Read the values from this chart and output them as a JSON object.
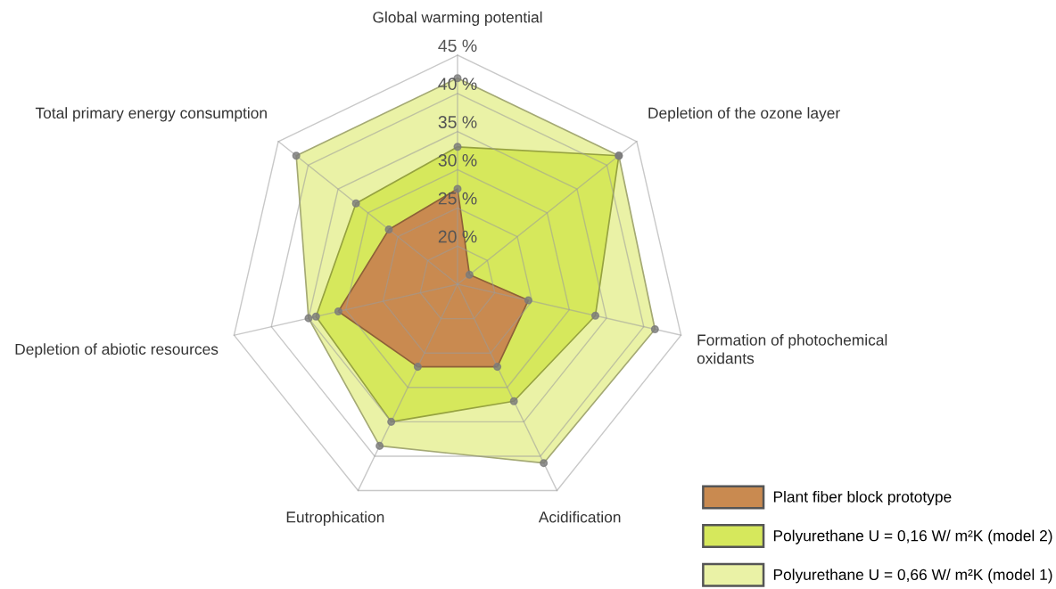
{
  "chart_data": {
    "type": "radar",
    "categories": [
      "Global warming potential",
      "Depletion of the ozone layer",
      "Formation of photochemical\noxidants",
      "Acidification",
      "Eutrophication",
      "Depletion of abiotic resources",
      "Total primary energy consumption"
    ],
    "series": [
      {
        "name": "Plant fiber block prototype",
        "color": "#c98a50",
        "values": [
          27.5,
          17,
          24.5,
          27,
          27,
          31,
          26.5
        ]
      },
      {
        "name": "Polyurethane U = 0,16 W/ m²K (model 2)",
        "color": "#d6e85c",
        "values": [
          33,
          42,
          33.5,
          32,
          35,
          34,
          32
        ]
      },
      {
        "name": "Polyurethane U = 0,66 W/ m²K (model 1)",
        "color": "#eaf2a6",
        "values": [
          42,
          42,
          41.5,
          41,
          38.5,
          35,
          42
        ]
      }
    ],
    "ylim": [
      15,
      45
    ],
    "yticks": [
      {
        "value": 20,
        "label": "20 %"
      },
      {
        "value": 25,
        "label": "25 %"
      },
      {
        "value": 30,
        "label": "30 %"
      },
      {
        "value": 35,
        "label": "35 %"
      },
      {
        "value": 40,
        "label": "40 %"
      },
      {
        "value": 45,
        "label": "45 %"
      }
    ],
    "grid": true,
    "legend": "bottom right",
    "marker": "circle"
  }
}
